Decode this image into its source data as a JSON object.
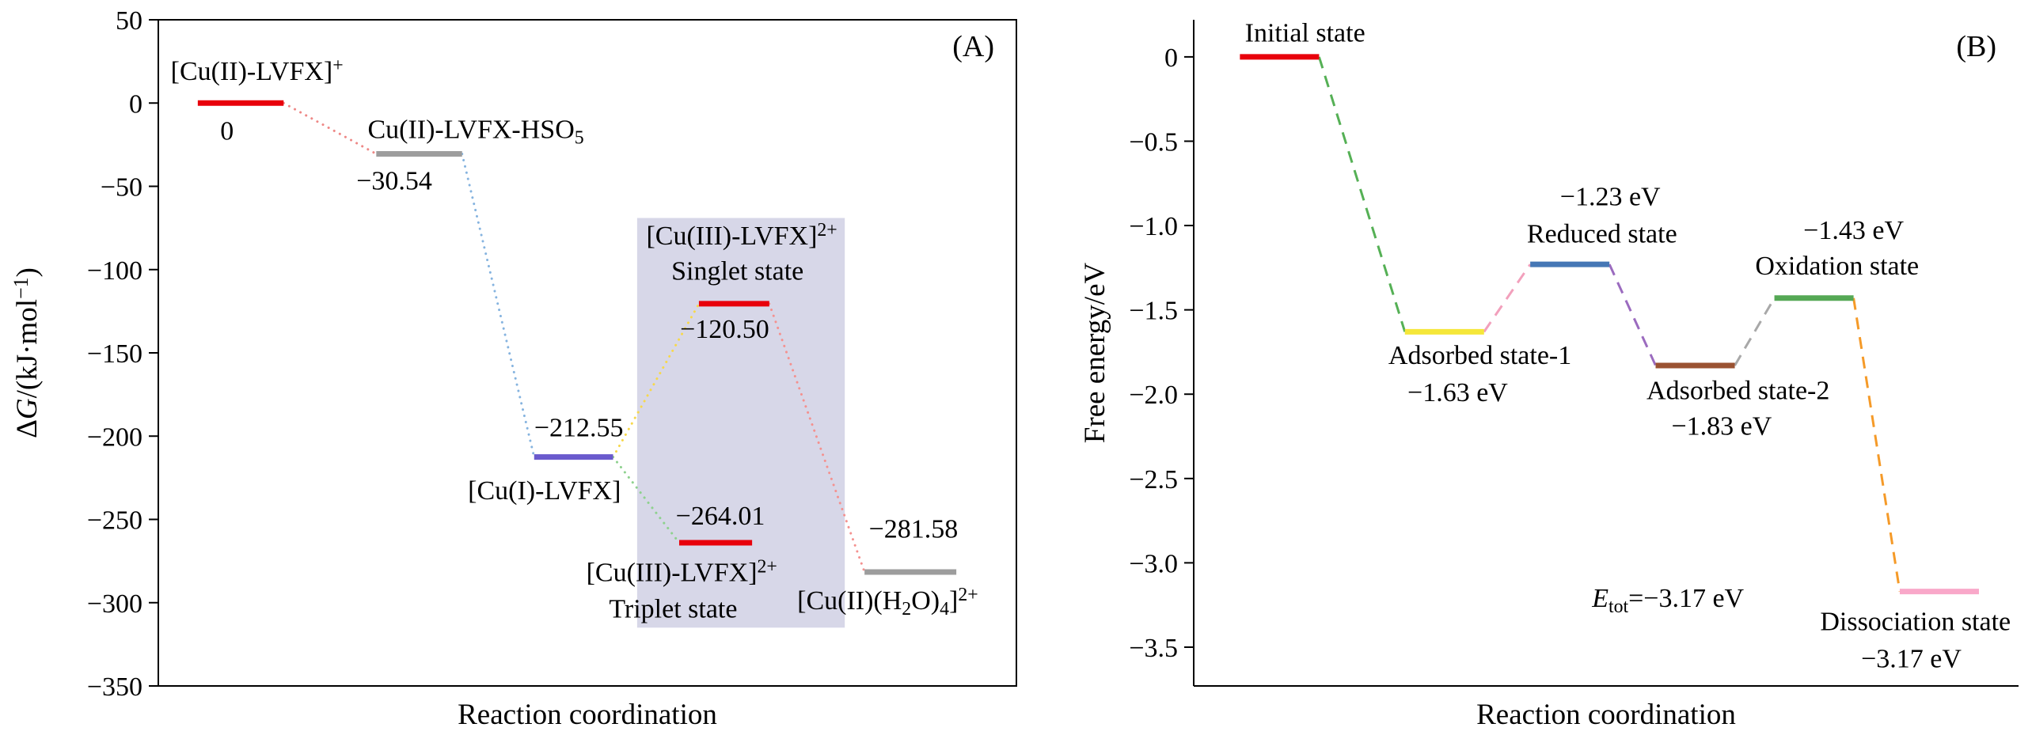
{
  "figure": {
    "background": "#ffffff"
  },
  "chart_data": [
    {
      "id": "panel-a",
      "type": "energy-level-diagram",
      "panel_label": "(A)",
      "xlabel": "Reaction coordination",
      "ylabel": "Δ/{G}/(kJ·mol^{−1})",
      "ylim": [
        -350,
        50
      ],
      "yticks": [
        {
          "v": 50,
          "label": "50"
        },
        {
          "v": 0,
          "label": "0"
        },
        {
          "v": -50,
          "label": "−50"
        },
        {
          "v": -100,
          "label": "−100"
        },
        {
          "v": -150,
          "label": "−150"
        },
        {
          "v": -200,
          "label": "−200"
        },
        {
          "v": -250,
          "label": "−250"
        },
        {
          "v": -300,
          "label": "−300"
        },
        {
          "v": -350,
          "label": "−350"
        }
      ],
      "frame": "box",
      "highlight_region": {
        "x0": 0.558,
        "x1": 0.8,
        "y_top": -69,
        "y_bottom": -315,
        "color": "#d7d7e8"
      },
      "levels": [
        {
          "name": "[Cu(II)-LVFX]+",
          "value": 0,
          "x0": 0.046,
          "x1": 0.146,
          "color": "#e8000b"
        },
        {
          "name": "Cu(II)-LVFX-HSO5",
          "value": -30.54,
          "x0": 0.254,
          "x1": 0.354,
          "color": "#9d9d9d"
        },
        {
          "name": "[Cu(I)-LVFX]",
          "value": -212.55,
          "x0": 0.438,
          "x1": 0.53,
          "color": "#6a5acd"
        },
        {
          "name": "[Cu(III)-LVFX]2+ (singlet)",
          "value": -120.5,
          "x0": 0.63,
          "x1": 0.712,
          "color": "#e8000b"
        },
        {
          "name": "[Cu(III)-LVFX]2+ (triplet)",
          "value": -264.01,
          "x0": 0.607,
          "x1": 0.692,
          "color": "#e8000b"
        },
        {
          "name": "[Cu(II)(H2O)4]2+",
          "value": -281.58,
          "x0": 0.823,
          "x1": 0.93,
          "color": "#9d9d9d"
        }
      ],
      "labels": [
        {
          "text": "[Cu(II)-LVFX]^{+}",
          "x": 0.115,
          "y": 14
        },
        {
          "text": "0",
          "x": 0.08,
          "y": -22
        },
        {
          "text": "Cu(II)-LVFX-HSO_{5}",
          "x": 0.37,
          "y": -21
        },
        {
          "text": "−30.54",
          "x": 0.275,
          "y": -52
        },
        {
          "text": "−212.55",
          "x": 0.49,
          "y": -200
        },
        {
          "text": "[Cu(I)-LVFX]",
          "x": 0.45,
          "y": -238
        },
        {
          "text": "[Cu(III)-LVFX]^{2+}",
          "x": 0.68,
          "y": -85
        },
        {
          "text": "Singlet state",
          "x": 0.675,
          "y": -106
        },
        {
          "text": "−120.50",
          "x": 0.66,
          "y": -141
        },
        {
          "text": "−264.01",
          "x": 0.655,
          "y": -253
        },
        {
          "text": "[Cu(III)-LVFX]^{2+}",
          "x": 0.61,
          "y": -287
        },
        {
          "text": "Triplet state",
          "x": 0.6,
          "y": -309
        },
        {
          "text": "−281.58",
          "x": 0.88,
          "y": -261
        },
        {
          "text": "[Cu(II)(H_{2}O)_{4}]^{2+}",
          "x": 0.85,
          "y": -304
        }
      ],
      "connectors": [
        {
          "from": 0,
          "to": 1,
          "color": "#ee8886",
          "style": "dotted"
        },
        {
          "from": 1,
          "to": 2,
          "color": "#85b3df",
          "style": "dotted"
        },
        {
          "from": 2,
          "to": 3,
          "color": "#f7d84b",
          "style": "dotted"
        },
        {
          "from": 2,
          "to": 4,
          "color": "#8ed18e",
          "style": "dotted"
        },
        {
          "from": 3,
          "to": 5,
          "color": "#f4918f",
          "style": "dotted"
        }
      ]
    },
    {
      "id": "panel-b",
      "type": "energy-level-diagram",
      "panel_label": "(B)",
      "xlabel": "Reaction coordination",
      "ylabel": "Free energy/eV",
      "ylim": [
        -3.73,
        0.22
      ],
      "yticks": [
        {
          "v": 0,
          "label": "0"
        },
        {
          "v": -0.5,
          "label": "−0.5"
        },
        {
          "v": -1.0,
          "label": "−1.0"
        },
        {
          "v": -1.5,
          "label": "−1.5"
        },
        {
          "v": -2.0,
          "label": "−2.0"
        },
        {
          "v": -2.5,
          "label": "−2.5"
        },
        {
          "v": -3.0,
          "label": "−3.0"
        },
        {
          "v": -3.5,
          "label": "−3.5"
        }
      ],
      "frame": "axes",
      "levels": [
        {
          "name": "Initial state",
          "value": 0,
          "x0": 0.056,
          "x1": 0.152,
          "color": "#e8000b"
        },
        {
          "name": "Adsorbed state-1",
          "value": -1.63,
          "x0": 0.256,
          "x1": 0.352,
          "color": "#f5e73a"
        },
        {
          "name": "Reduced state",
          "value": -1.23,
          "x0": 0.408,
          "x1": 0.504,
          "color": "#4577b5"
        },
        {
          "name": "Adsorbed state-2",
          "value": -1.83,
          "x0": 0.56,
          "x1": 0.656,
          "color": "#9a5232"
        },
        {
          "name": "Oxidation state",
          "value": -1.43,
          "x0": 0.704,
          "x1": 0.8,
          "color": "#55a855"
        },
        {
          "name": "Dissociation state",
          "value": -3.17,
          "x0": 0.856,
          "x1": 0.952,
          "color": "#f9a8c9"
        }
      ],
      "labels": [
        {
          "text": "Initial state",
          "x": 0.135,
          "y": 0.09
        },
        {
          "text": "Adsorbed state-1",
          "x": 0.347,
          "y": -1.82
        },
        {
          "text": "−1.63 eV",
          "x": 0.32,
          "y": -2.04
        },
        {
          "text": "−1.23 eV",
          "x": 0.505,
          "y": -0.88
        },
        {
          "text": "Reduced state",
          "x": 0.495,
          "y": -1.1
        },
        {
          "text": "Adsorbed state-2",
          "x": 0.66,
          "y": -2.03
        },
        {
          "text": "−1.83 eV",
          "x": 0.64,
          "y": -2.24
        },
        {
          "text": "−1.43 eV",
          "x": 0.8,
          "y": -1.08
        },
        {
          "text": "Oxidation state",
          "x": 0.78,
          "y": -1.29
        },
        {
          "text": "/{E}_{tot}=−3.17 eV",
          "x": 0.575,
          "y": -3.26
        },
        {
          "text": "Dissociation state",
          "x": 0.875,
          "y": -3.4
        },
        {
          "text": "−3.17 eV",
          "x": 0.87,
          "y": -3.62
        }
      ],
      "connectors": [
        {
          "from": 0,
          "to": 1,
          "color": "#55b055",
          "style": "dashed"
        },
        {
          "from": 1,
          "to": 2,
          "color": "#f2a0bc",
          "style": "dashed"
        },
        {
          "from": 2,
          "to": 3,
          "color": "#9b6bbf",
          "style": "dashed"
        },
        {
          "from": 3,
          "to": 4,
          "color": "#a8a8a8",
          "style": "dashed"
        },
        {
          "from": 4,
          "to": 5,
          "color": "#f59a28",
          "style": "dashed"
        }
      ]
    }
  ]
}
